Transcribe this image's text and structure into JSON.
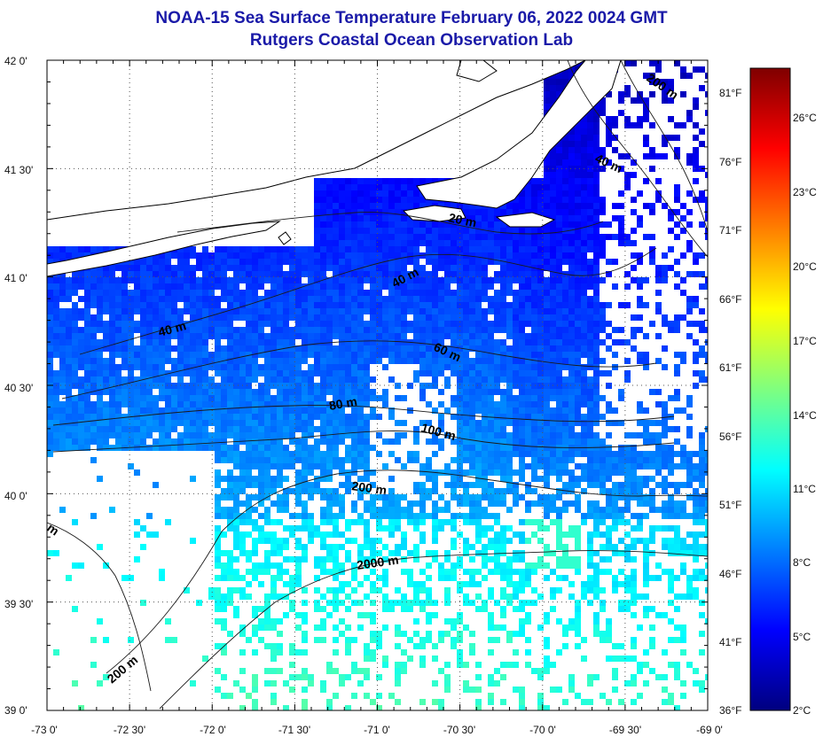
{
  "title": "NOAA-15 Sea Surface Temperature February 06, 2022 0024 GMT",
  "subtitle": "Rutgers Coastal Ocean Observation Lab",
  "chart_data": {
    "type": "heatmap",
    "title": "NOAA-15 Sea Surface Temperature February 06, 2022 0024 GMT",
    "subtitle": "Rutgers Coastal Ocean Observation Lab",
    "x_ticks": [
      "-73 0'",
      "-72 30'",
      "-72 0'",
      "-71 30'",
      "-71 0'",
      "-70 30'",
      "-70 0'",
      "-69 30'",
      "-69 0'"
    ],
    "y_ticks": [
      "42 0'",
      "41 30'",
      "41 0'",
      "40 30'",
      "40 0'",
      "39 30'",
      "39 0'"
    ],
    "xlim": [
      -73,
      -69
    ],
    "ylim": [
      39,
      42
    ],
    "colorbar_celsius": [
      "26°C",
      "23°C",
      "20°C",
      "17°C",
      "14°C",
      "11°C",
      "8°C",
      "5°C",
      "2°C"
    ],
    "colorbar_fahrenheit": [
      "81°F",
      "76°F",
      "71°F",
      "66°F",
      "61°F",
      "56°F",
      "51°F",
      "46°F",
      "41°F",
      "36°F"
    ],
    "colorbar_range_c": [
      2,
      28
    ],
    "contour_labels": [
      "200 m",
      "40 m",
      "20 m",
      "40 m",
      "40 m",
      "60 m",
      "80 m",
      "100 m",
      "200 m",
      "2000 m",
      "200 m",
      "m"
    ],
    "grid": true,
    "colorbar_colors": [
      "#00007f",
      "#0000ff",
      "#007fff",
      "#00ffff",
      "#7fff7f",
      "#ffff00",
      "#ff7f00",
      "#ff0000",
      "#7f0000"
    ]
  }
}
